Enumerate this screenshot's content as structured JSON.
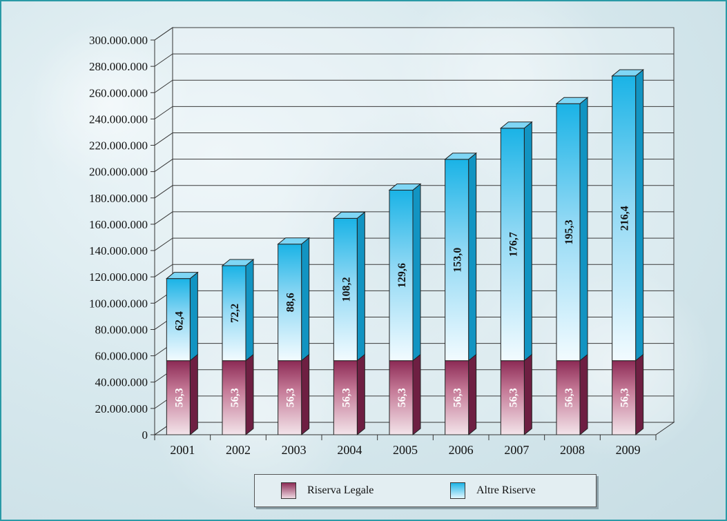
{
  "chart_data": {
    "type": "bar",
    "stacked": true,
    "three_d": true,
    "categories": [
      "2001",
      "2002",
      "2003",
      "2004",
      "2005",
      "2006",
      "2007",
      "2008",
      "2009"
    ],
    "series": [
      {
        "name": "Riserva Legale",
        "values": [
          56300000,
          56300000,
          56300000,
          56300000,
          56300000,
          56300000,
          56300000,
          56300000,
          56300000
        ],
        "labels": [
          "56,3",
          "56,3",
          "56,3",
          "56,3",
          "56,3",
          "56,3",
          "56,3",
          "56,3",
          "56,3"
        ],
        "color": "#8c2a55"
      },
      {
        "name": "Altre Riserve",
        "values": [
          62400000,
          72200000,
          88600000,
          108200000,
          129600000,
          153000000,
          176700000,
          195300000,
          216400000
        ],
        "labels": [
          "62,4",
          "72,2",
          "88,6",
          "108,2",
          "129,6",
          "153,0",
          "176,7",
          "195,3",
          "216,4"
        ],
        "color": "#1ab3e6"
      }
    ],
    "yticks": [
      "0",
      "20.000.000",
      "40.000.000",
      "60.000.000",
      "80.000.000",
      "100.000.000",
      "120.000.000",
      "140.000.000",
      "160.000.000",
      "180.000.000",
      "200.000.000",
      "220.000.000",
      "240.000.000",
      "260.000.000",
      "280.000.000",
      "300.000.000"
    ],
    "ylim": [
      0,
      300000000
    ],
    "title": "",
    "xlabel": "",
    "ylabel": "",
    "grid": true,
    "legend_position": "bottom"
  }
}
